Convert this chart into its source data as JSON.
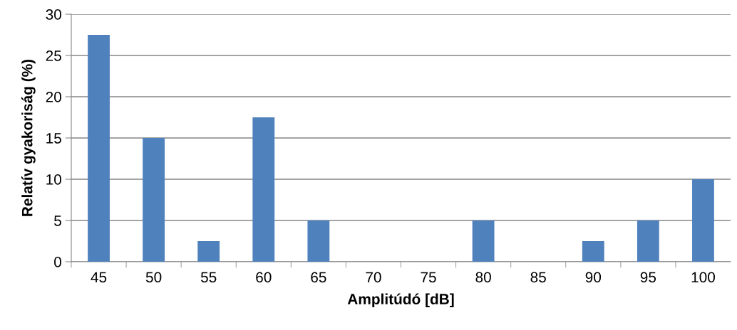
{
  "chart_data": {
    "type": "bar",
    "xlabel": "Amplitúdó [dB]",
    "ylabel": "Relatív gyakoriság (%)",
    "categories": [
      "45",
      "50",
      "55",
      "60",
      "65",
      "70",
      "75",
      "80",
      "85",
      "90",
      "95",
      "100"
    ],
    "values": [
      27.5,
      15,
      2.5,
      17.5,
      5,
      0,
      0,
      5,
      0,
      2.5,
      5,
      10
    ],
    "color": "#4f81bd",
    "ylim": [
      0,
      30
    ],
    "yticks": [
      0,
      5,
      10,
      15,
      20,
      25,
      30
    ],
    "grid": "y",
    "legend": false
  }
}
